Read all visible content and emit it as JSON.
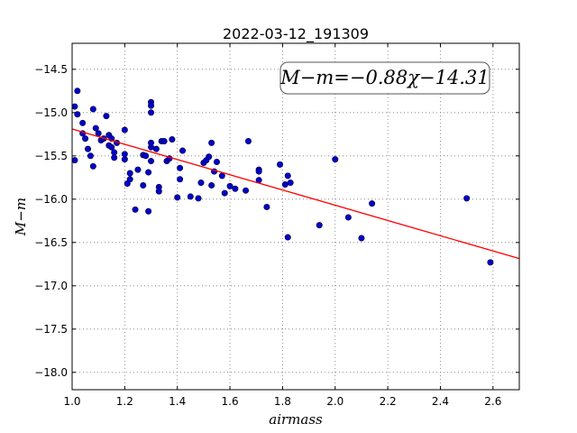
{
  "chart_data": {
    "type": "scatter",
    "title": "2022-03-12_191309",
    "xlabel": "airmass",
    "ylabel": "M−m",
    "xlim": [
      1.0,
      2.7
    ],
    "ylim": [
      -18.2,
      -14.2
    ],
    "y_inverted": true,
    "grid": true,
    "x_ticks": [
      1.0,
      1.2,
      1.4,
      1.6,
      1.8,
      2.0,
      2.2,
      2.4,
      2.6
    ],
    "x_tick_labels": [
      "1.0",
      "1.2",
      "1.4",
      "1.6",
      "1.8",
      "2.0",
      "2.2",
      "2.4",
      "2.6"
    ],
    "y_ticks": [
      -14.5,
      -15.0,
      -15.5,
      -16.0,
      -16.5,
      -17.0,
      -17.5,
      -18.0
    ],
    "y_tick_labels": [
      "−14.5",
      "−15.0",
      "−15.5",
      "−16.0",
      "−16.5",
      "−17.0",
      "−17.5",
      "−18.0"
    ],
    "annotation": "M−m=−0.88χ−14.31",
    "fit": {
      "slope": -0.88,
      "intercept": -14.31,
      "color": "#ff0000"
    },
    "points_color": "#0000cc",
    "points": [
      [
        1.01,
        -14.93
      ],
      [
        1.01,
        -15.55
      ],
      [
        1.02,
        -14.75
      ],
      [
        1.02,
        -15.02
      ],
      [
        1.04,
        -15.12
      ],
      [
        1.04,
        -15.24
      ],
      [
        1.05,
        -15.3
      ],
      [
        1.06,
        -15.42
      ],
      [
        1.07,
        -15.5
      ],
      [
        1.08,
        -14.96
      ],
      [
        1.08,
        -15.62
      ],
      [
        1.09,
        -15.18
      ],
      [
        1.1,
        -15.24
      ],
      [
        1.11,
        -15.32
      ],
      [
        1.12,
        -15.3
      ],
      [
        1.13,
        -15.04
      ],
      [
        1.14,
        -15.26
      ],
      [
        1.14,
        -15.38
      ],
      [
        1.15,
        -15.3
      ],
      [
        1.15,
        -15.4
      ],
      [
        1.16,
        -15.46
      ],
      [
        1.16,
        -15.52
      ],
      [
        1.17,
        -15.35
      ],
      [
        1.2,
        -15.2
      ],
      [
        1.2,
        -15.48
      ],
      [
        1.2,
        -15.54
      ],
      [
        1.21,
        -15.82
      ],
      [
        1.22,
        -15.7
      ],
      [
        1.22,
        -15.77
      ],
      [
        1.24,
        -16.12
      ],
      [
        1.25,
        -15.66
      ],
      [
        1.27,
        -15.49
      ],
      [
        1.27,
        -15.84
      ],
      [
        1.28,
        -15.5
      ],
      [
        1.29,
        -15.69
      ],
      [
        1.29,
        -16.14
      ],
      [
        1.3,
        -14.88
      ],
      [
        1.3,
        -14.92
      ],
      [
        1.3,
        -15.0
      ],
      [
        1.3,
        -15.35
      ],
      [
        1.3,
        -15.4
      ],
      [
        1.3,
        -15.56
      ],
      [
        1.32,
        -15.42
      ],
      [
        1.33,
        -15.86
      ],
      [
        1.33,
        -15.91
      ],
      [
        1.34,
        -15.33
      ],
      [
        1.35,
        -15.33
      ],
      [
        1.36,
        -15.56
      ],
      [
        1.37,
        -15.53
      ],
      [
        1.38,
        -15.31
      ],
      [
        1.4,
        -15.98
      ],
      [
        1.41,
        -15.64
      ],
      [
        1.41,
        -15.77
      ],
      [
        1.42,
        -15.44
      ],
      [
        1.45,
        -15.97
      ],
      [
        1.48,
        -15.99
      ],
      [
        1.49,
        -15.81
      ],
      [
        1.5,
        -15.58
      ],
      [
        1.51,
        -15.55
      ],
      [
        1.52,
        -15.51
      ],
      [
        1.53,
        -15.35
      ],
      [
        1.53,
        -15.84
      ],
      [
        1.54,
        -15.68
      ],
      [
        1.55,
        -15.57
      ],
      [
        1.57,
        -15.73
      ],
      [
        1.58,
        -15.93
      ],
      [
        1.6,
        -15.85
      ],
      [
        1.62,
        -15.88
      ],
      [
        1.66,
        -15.9
      ],
      [
        1.67,
        -15.33
      ],
      [
        1.71,
        -15.66
      ],
      [
        1.71,
        -15.68
      ],
      [
        1.71,
        -15.78
      ],
      [
        1.74,
        -16.09
      ],
      [
        1.79,
        -15.6
      ],
      [
        1.81,
        -15.83
      ],
      [
        1.82,
        -15.73
      ],
      [
        1.82,
        -16.44
      ],
      [
        1.83,
        -15.81
      ],
      [
        1.94,
        -16.3
      ],
      [
        2.0,
        -15.54
      ],
      [
        2.05,
        -16.21
      ],
      [
        2.1,
        -16.45
      ],
      [
        2.14,
        -16.05
      ],
      [
        2.5,
        -15.99
      ],
      [
        2.59,
        -16.73
      ]
    ]
  }
}
